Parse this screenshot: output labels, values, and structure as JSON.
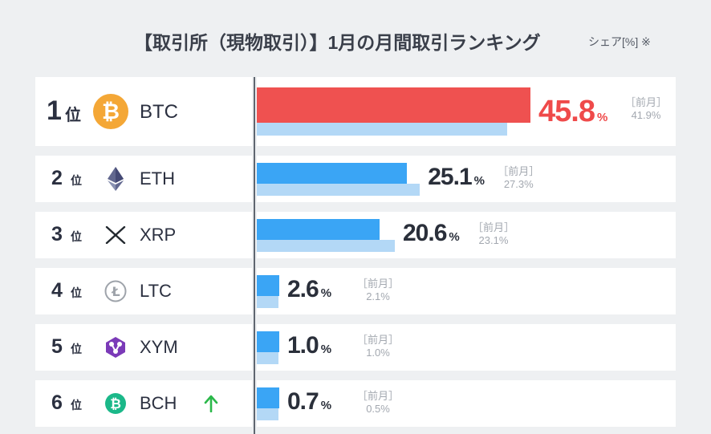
{
  "header": {
    "title": "【取引所（現物取引）】1月の月間取引ランキング",
    "note": "シェア[%] ※"
  },
  "colors": {
    "top_bar": "#ef5150",
    "top_value": "#ef4a4a",
    "current_bar": "#3aa5f5",
    "previous_bar": "#b3d8f6",
    "btc_icon": "#f4a736",
    "xym_icon": "#7b3ab8",
    "bch_icon": "#1bb889",
    "up_arrow": "#2bb84a"
  },
  "rank_suffix": "位",
  "pct_unit": "%",
  "prev_label": "［前月］",
  "chart_data": {
    "type": "bar",
    "orientation": "horizontal",
    "title": "【取引所（現物取引）】1月の月間取引ランキング",
    "categories": [
      "BTC",
      "ETH",
      "XRP",
      "LTC",
      "XYM",
      "BCH"
    ],
    "series": [
      {
        "name": "",
        "values": [
          45.8,
          25.1,
          20.6,
          2.6,
          1.0,
          0.7
        ]
      },
      {
        "name": "前月",
        "values": [
          41.9,
          27.3,
          23.1,
          2.1,
          1.0,
          0.5
        ]
      }
    ],
    "xlim": [
      0,
      50
    ]
  },
  "rows": [
    {
      "rank": "1",
      "name": "BTC",
      "icon": "bitcoin-icon",
      "current": "45.8",
      "previous": "41.9%",
      "trend": ""
    },
    {
      "rank": "2",
      "name": "ETH",
      "icon": "ethereum-icon",
      "current": "25.1",
      "previous": "27.3%",
      "trend": ""
    },
    {
      "rank": "3",
      "name": "XRP",
      "icon": "xrp-icon",
      "current": "20.6",
      "previous": "23.1%",
      "trend": ""
    },
    {
      "rank": "4",
      "name": "LTC",
      "icon": "litecoin-icon",
      "current": "2.6",
      "previous": "2.1%",
      "trend": ""
    },
    {
      "rank": "5",
      "name": "XYM",
      "icon": "symbol-icon",
      "current": "1.0",
      "previous": "1.0%",
      "trend": ""
    },
    {
      "rank": "6",
      "name": "BCH",
      "icon": "bitcoin-cash-icon",
      "current": "0.7",
      "previous": "0.5%",
      "trend": "up-arrow-icon"
    }
  ]
}
